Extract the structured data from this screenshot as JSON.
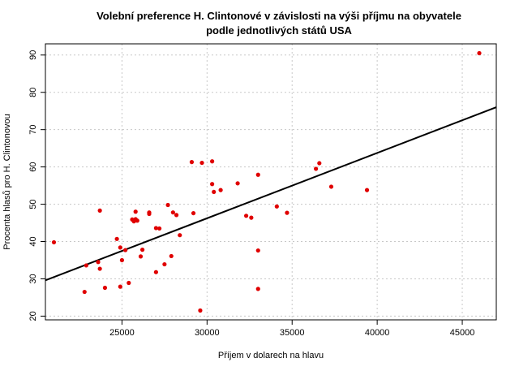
{
  "chart_data": {
    "type": "scatter",
    "title_lines": [
      "Volební preference H. Clintonové v závislosti na výši příjmu na obyvatele",
      "podle jednotlivých států USA"
    ],
    "xlabel": "Příjem v dolarech na hlavu",
    "ylabel": "Procenta hlasů pro H. Clintonovou",
    "xlim": [
      20500,
      47000
    ],
    "ylim": [
      19,
      93
    ],
    "x_ticks": [
      25000,
      30000,
      35000,
      40000,
      45000
    ],
    "y_ticks": [
      20,
      30,
      40,
      50,
      60,
      70,
      80,
      90
    ],
    "grid": true,
    "point_color": "#e00000",
    "line_color": "#000000",
    "regression_line": {
      "x": [
        20500,
        47000
      ],
      "y": [
        29.6,
        76.0
      ]
    },
    "points": [
      {
        "x": 21000,
        "y": 39.8
      },
      {
        "x": 22800,
        "y": 26.5
      },
      {
        "x": 22900,
        "y": 33.6
      },
      {
        "x": 23600,
        "y": 34.5
      },
      {
        "x": 23700,
        "y": 48.3
      },
      {
        "x": 23700,
        "y": 32.7
      },
      {
        "x": 24000,
        "y": 27.6
      },
      {
        "x": 24700,
        "y": 40.7
      },
      {
        "x": 24900,
        "y": 38.4
      },
      {
        "x": 24900,
        "y": 27.9
      },
      {
        "x": 25000,
        "y": 35.0
      },
      {
        "x": 25200,
        "y": 37.7
      },
      {
        "x": 25400,
        "y": 28.9
      },
      {
        "x": 25600,
        "y": 45.9
      },
      {
        "x": 25700,
        "y": 45.4
      },
      {
        "x": 25800,
        "y": 46.0
      },
      {
        "x": 25800,
        "y": 48.0
      },
      {
        "x": 25900,
        "y": 45.6
      },
      {
        "x": 26100,
        "y": 36.0
      },
      {
        "x": 26200,
        "y": 37.8
      },
      {
        "x": 26600,
        "y": 47.8
      },
      {
        "x": 26600,
        "y": 47.4
      },
      {
        "x": 27000,
        "y": 43.6
      },
      {
        "x": 27000,
        "y": 31.8
      },
      {
        "x": 27200,
        "y": 43.5
      },
      {
        "x": 27500,
        "y": 33.9
      },
      {
        "x": 27700,
        "y": 49.8
      },
      {
        "x": 27900,
        "y": 36.1
      },
      {
        "x": 28000,
        "y": 47.8
      },
      {
        "x": 28200,
        "y": 47.1
      },
      {
        "x": 28400,
        "y": 41.7
      },
      {
        "x": 29100,
        "y": 61.3
      },
      {
        "x": 29200,
        "y": 47.6
      },
      {
        "x": 29600,
        "y": 21.5
      },
      {
        "x": 29700,
        "y": 61.1
      },
      {
        "x": 30300,
        "y": 61.5
      },
      {
        "x": 30300,
        "y": 55.4
      },
      {
        "x": 30400,
        "y": 53.3
      },
      {
        "x": 30800,
        "y": 53.8
      },
      {
        "x": 31800,
        "y": 55.6
      },
      {
        "x": 32300,
        "y": 46.9
      },
      {
        "x": 32600,
        "y": 46.4
      },
      {
        "x": 33000,
        "y": 57.9
      },
      {
        "x": 33000,
        "y": 37.6
      },
      {
        "x": 33000,
        "y": 27.3
      },
      {
        "x": 34100,
        "y": 49.4
      },
      {
        "x": 34700,
        "y": 47.7
      },
      {
        "x": 36400,
        "y": 59.5
      },
      {
        "x": 36600,
        "y": 61.0
      },
      {
        "x": 37300,
        "y": 54.7
      },
      {
        "x": 39400,
        "y": 53.8
      },
      {
        "x": 46000,
        "y": 90.5
      }
    ]
  }
}
